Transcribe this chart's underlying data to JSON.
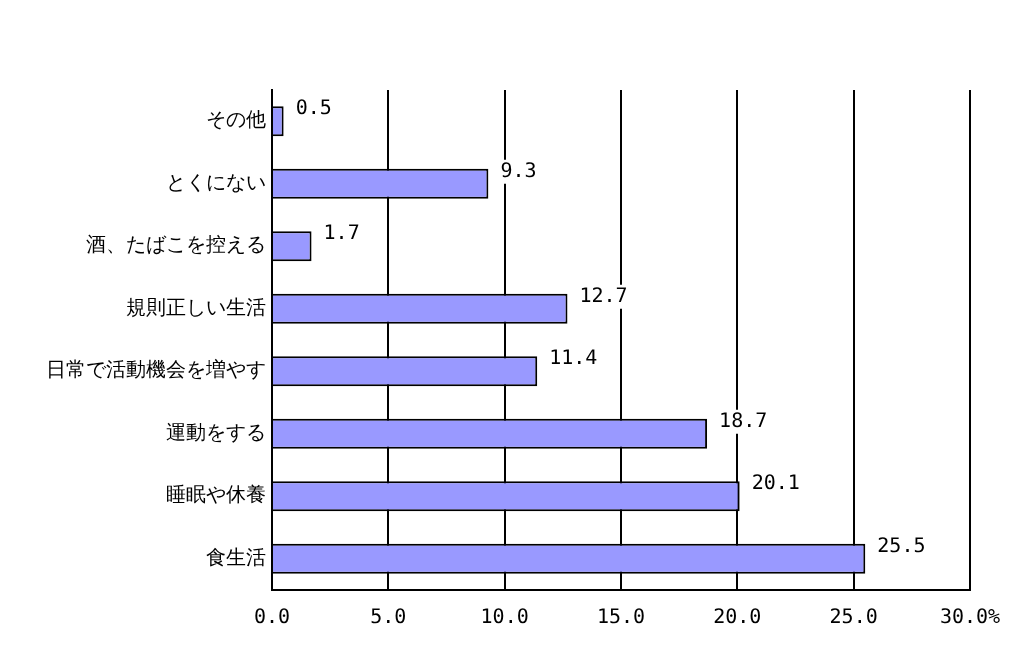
{
  "chart_data": {
    "type": "bar",
    "orientation": "horizontal",
    "categories": [
      "その他",
      "とくにない",
      "酒、たばこを控える",
      "規則正しい生活",
      "日常で活動機会を増やす",
      "運動をする",
      "睡眠や休養",
      "食生活"
    ],
    "values": [
      0.5,
      9.3,
      1.7,
      12.7,
      11.4,
      18.7,
      20.1,
      25.5
    ],
    "color": "#9999ff",
    "xlim": [
      0,
      30
    ],
    "xticks": [
      {
        "value": 0,
        "label": "0.0"
      },
      {
        "value": 5,
        "label": "5.0"
      },
      {
        "value": 10,
        "label": "10.0"
      },
      {
        "value": 15,
        "label": "15.0"
      },
      {
        "value": 20,
        "label": "20.0"
      },
      {
        "value": 25,
        "label": "25.0"
      },
      {
        "value": 30,
        "label": "30.0%"
      }
    ],
    "grid": "x",
    "data_labels": true
  }
}
